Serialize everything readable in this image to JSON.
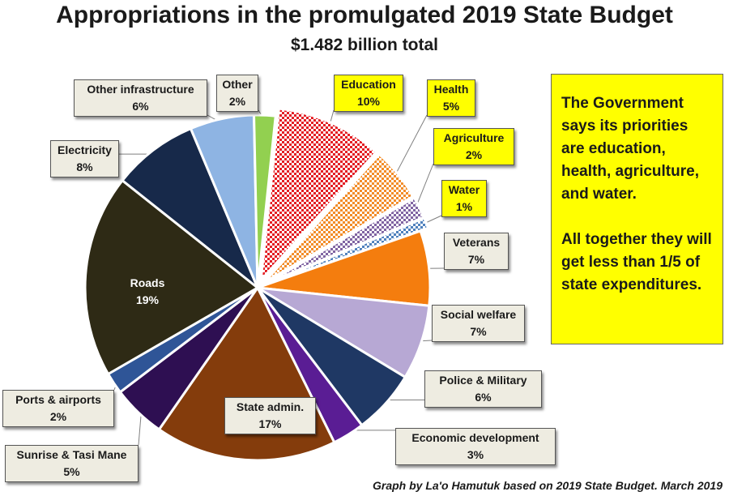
{
  "title": "Appropriations in the promulgated 2019 State Budget",
  "subtitle": "$1.482 billion total",
  "note": {
    "paragraph1": "The Government says its priorities are education, health, agriculture, and water.",
    "paragraph2": "All together they will get less than 1/5 of state expenditures."
  },
  "credit": "Graph by La'o Hamutuk based on 2019 State Budget. March 2019",
  "colors": {
    "note_background": "#ffff00",
    "label_background": "#eeece1"
  },
  "chart_data": {
    "type": "pie",
    "title": "Appropriations in the promulgated 2019 State Budget",
    "subtitle": "$1.482 billion total",
    "unit": "%",
    "slices": [
      {
        "label": "Education",
        "value": 10,
        "value_label": "10%",
        "color": "#e31e24",
        "pattern": "checker",
        "exploded": true,
        "highlight": true
      },
      {
        "label": "Health",
        "value": 5,
        "value_label": "5%",
        "color": "#f28c28",
        "pattern": "checker",
        "exploded": true,
        "highlight": true
      },
      {
        "label": "Agriculture",
        "value": 2,
        "value_label": "2%",
        "color": "#8064a2",
        "pattern": "checker",
        "exploded": true,
        "highlight": true
      },
      {
        "label": "Water",
        "value": 1,
        "value_label": "1%",
        "color": "#4f81bd",
        "pattern": "checker",
        "exploded": true,
        "highlight": true
      },
      {
        "label": "Veterans",
        "value": 7,
        "value_label": "7%",
        "color": "#f47d0e",
        "pattern": "solid",
        "exploded": false,
        "highlight": false
      },
      {
        "label": "Social welfare",
        "value": 7,
        "value_label": "7%",
        "color": "#b7a8d4",
        "pattern": "solid",
        "exploded": false,
        "highlight": false
      },
      {
        "label": "Police & Military",
        "value": 6,
        "value_label": "6%",
        "color": "#1f3864",
        "pattern": "solid",
        "exploded": false,
        "highlight": false
      },
      {
        "label": "Economic development",
        "value": 3,
        "value_label": "3%",
        "color": "#5a1d94",
        "pattern": "solid",
        "exploded": false,
        "highlight": false
      },
      {
        "label": "State admin.",
        "value": 17,
        "value_label": "17%",
        "color": "#843c0c",
        "pattern": "solid",
        "exploded": false,
        "highlight": false
      },
      {
        "label": "Sunrise & Tasi Mane",
        "value": 5,
        "value_label": "5%",
        "color": "#2e0f52",
        "pattern": "solid",
        "exploded": false,
        "highlight": false
      },
      {
        "label": "Ports & airports",
        "value": 2,
        "value_label": "2%",
        "color": "#2f5597",
        "pattern": "solid",
        "exploded": false,
        "highlight": false
      },
      {
        "label": "Roads",
        "value": 19,
        "value_label": "19%",
        "color": "#2e2a15",
        "pattern": "solid",
        "exploded": false,
        "highlight": false
      },
      {
        "label": "Electricity",
        "value": 8,
        "value_label": "8%",
        "color": "#17294a",
        "pattern": "solid",
        "exploded": false,
        "highlight": false
      },
      {
        "label": "Other infrastructure",
        "value": 6,
        "value_label": "6%",
        "color": "#8eb4e3",
        "pattern": "solid",
        "exploded": false,
        "highlight": false
      },
      {
        "label": "Other",
        "value": 2,
        "value_label": "2%",
        "color": "#92d050",
        "pattern": "solid",
        "exploded": false,
        "highlight": false
      }
    ]
  }
}
